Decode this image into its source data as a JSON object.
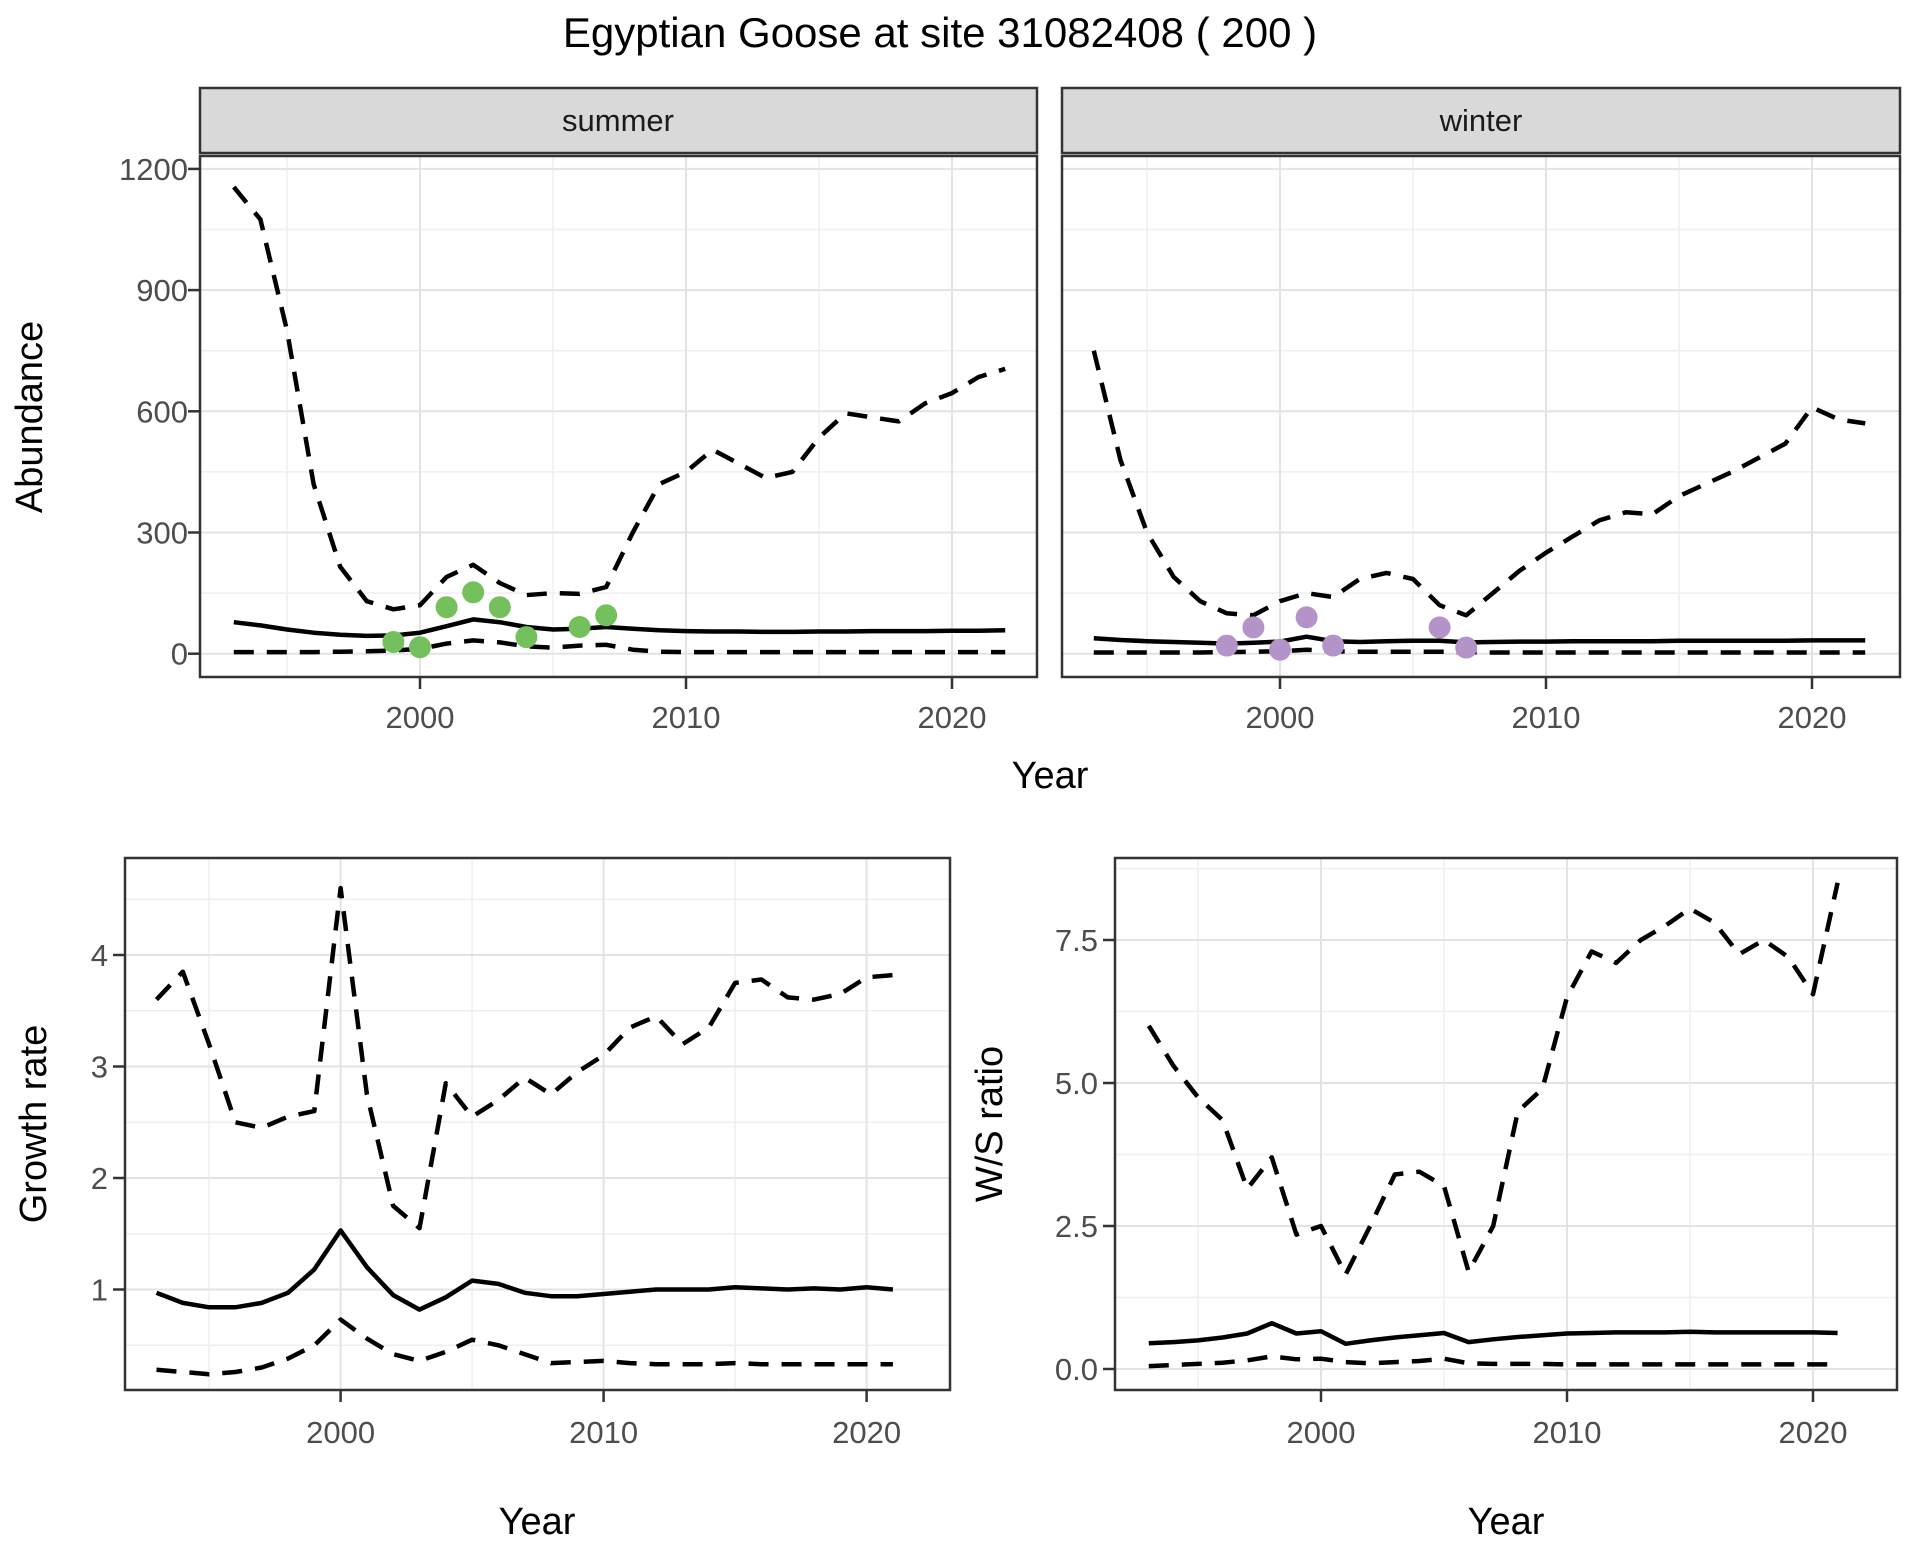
{
  "title": "Egyptian Goose at site 31082408 ( 200 )",
  "facets": {
    "summer": "summer",
    "winter": "winter"
  },
  "axes": {
    "abundance_label": "Abundance",
    "growth_label": "Growth rate",
    "ws_label": "W/S ratio",
    "year_label": "Year"
  },
  "colors": {
    "summer_points": "#74C05C",
    "winter_points": "#B494C8",
    "line": "#000000",
    "strip_fill": "#D9D9D9",
    "panel_border": "#333333",
    "grid_major": "#E3E3E3",
    "grid_minor": "#EFEFEF",
    "tick_text": "#4D4D4D"
  },
  "chart_data": [
    {
      "type": "line",
      "facet": "summer",
      "title": "Abundance (summer facet)",
      "xlabel": "Year",
      "ylabel": "Abundance",
      "x": [
        1993,
        1994,
        1995,
        1996,
        1997,
        1998,
        1999,
        2000,
        2001,
        2002,
        2003,
        2004,
        2005,
        2006,
        2007,
        2008,
        2009,
        2010,
        2011,
        2012,
        2013,
        2014,
        2015,
        2016,
        2017,
        2018,
        2019,
        2020,
        2021,
        2022
      ],
      "x_ticks": [
        2000,
        2010,
        2020
      ],
      "y_ticks": [
        0,
        300,
        600,
        900,
        1200
      ],
      "ylim": [
        -60,
        1235
      ],
      "xlim": [
        1991.6,
        2023.2
      ],
      "grid": true,
      "legend": "none",
      "series": [
        {
          "name": "upper_ci",
          "style": "dashed",
          "values": [
            1155,
            1075,
            800,
            420,
            215,
            130,
            110,
            120,
            190,
            220,
            175,
            145,
            150,
            148,
            165,
            300,
            420,
            450,
            505,
            470,
            435,
            450,
            535,
            595,
            585,
            575,
            620,
            645,
            685,
            705
          ]
        },
        {
          "name": "estimate",
          "style": "solid",
          "values": [
            78,
            70,
            60,
            52,
            47,
            44,
            45,
            52,
            68,
            85,
            78,
            66,
            60,
            62,
            66,
            62,
            58,
            56,
            55,
            55,
            54,
            54,
            55,
            55,
            56,
            56,
            56,
            57,
            57,
            58
          ]
        },
        {
          "name": "lower_ci",
          "style": "dashed",
          "values": [
            4,
            4,
            4,
            4,
            5,
            6,
            8,
            12,
            25,
            33,
            28,
            18,
            15,
            20,
            22,
            10,
            5,
            4,
            4,
            4,
            4,
            4,
            4,
            4,
            4,
            4,
            4,
            4,
            4,
            4
          ]
        }
      ],
      "points": {
        "name": "observed counts",
        "color": "#74C05C",
        "data": [
          [
            1999,
            29
          ],
          [
            2000,
            16
          ],
          [
            2001,
            115
          ],
          [
            2002,
            152
          ],
          [
            2003,
            115
          ],
          [
            2004,
            41
          ],
          [
            2006,
            66
          ],
          [
            2007,
            95
          ]
        ]
      }
    },
    {
      "type": "line",
      "facet": "winter",
      "title": "Abundance (winter facet)",
      "xlabel": "Year",
      "ylabel": "Abundance",
      "x": [
        1993,
        1994,
        1995,
        1996,
        1997,
        1998,
        1999,
        2000,
        2001,
        2002,
        2003,
        2004,
        2005,
        2006,
        2007,
        2008,
        2009,
        2010,
        2011,
        2012,
        2013,
        2014,
        2015,
        2016,
        2017,
        2018,
        2019,
        2020,
        2021,
        2022
      ],
      "x_ticks": [
        2000,
        2010,
        2020
      ],
      "y_ticks": [
        0,
        300,
        600,
        900,
        1200
      ],
      "ylim": [
        -60,
        1235
      ],
      "xlim": [
        1991.6,
        2023.2
      ],
      "grid": true,
      "legend": "none",
      "series": [
        {
          "name": "upper_ci",
          "style": "dashed",
          "values": [
            750,
            480,
            300,
            190,
            130,
            100,
            95,
            130,
            150,
            140,
            185,
            200,
            185,
            120,
            95,
            150,
            205,
            250,
            290,
            330,
            350,
            345,
            390,
            420,
            450,
            485,
            520,
            610,
            580,
            570
          ]
        },
        {
          "name": "estimate",
          "style": "solid",
          "values": [
            38,
            34,
            31,
            29,
            27,
            25,
            27,
            30,
            42,
            31,
            29,
            31,
            32,
            32,
            28,
            29,
            30,
            30,
            31,
            31,
            31,
            31,
            32,
            32,
            32,
            32,
            32,
            33,
            33,
            33
          ]
        },
        {
          "name": "lower_ci",
          "style": "dashed",
          "values": [
            3,
            3,
            3,
            3,
            3,
            4,
            5,
            6,
            10,
            6,
            5,
            5,
            5,
            5,
            4,
            3,
            3,
            3,
            3,
            3,
            3,
            3,
            3,
            3,
            3,
            3,
            3,
            3,
            3,
            3
          ]
        }
      ],
      "points": {
        "name": "observed counts",
        "color": "#B494C8",
        "data": [
          [
            1998,
            20
          ],
          [
            1999,
            65
          ],
          [
            2000,
            10
          ],
          [
            2001,
            90
          ],
          [
            2002,
            20
          ],
          [
            2006,
            65
          ],
          [
            2007,
            15
          ]
        ]
      }
    },
    {
      "type": "line",
      "facet": null,
      "title": "Growth rate",
      "xlabel": "Year",
      "ylabel": "Growth rate",
      "x": [
        1993,
        1994,
        1995,
        1996,
        1997,
        1998,
        1999,
        2000,
        2001,
        2002,
        2003,
        2004,
        2005,
        2006,
        2007,
        2008,
        2009,
        2010,
        2011,
        2012,
        2013,
        2014,
        2015,
        2016,
        2017,
        2018,
        2019,
        2020,
        2021
      ],
      "x_ticks": [
        2000,
        2010,
        2020
      ],
      "y_ticks": [
        1,
        2,
        3,
        4
      ],
      "ylim": [
        0.1,
        4.87
      ],
      "xlim": [
        1991.6,
        2023.2
      ],
      "grid": true,
      "legend": "none",
      "series": [
        {
          "name": "upper_ci",
          "style": "dashed",
          "values": [
            3.6,
            3.85,
            3.2,
            2.5,
            2.45,
            2.55,
            2.6,
            4.6,
            2.75,
            1.75,
            1.55,
            2.85,
            2.55,
            2.7,
            2.9,
            2.75,
            2.95,
            3.1,
            3.35,
            3.45,
            3.2,
            3.35,
            3.75,
            3.78,
            3.62,
            3.6,
            3.65,
            3.8,
            3.82
          ]
        },
        {
          "name": "estimate",
          "style": "solid",
          "values": [
            0.97,
            0.88,
            0.84,
            0.84,
            0.88,
            0.97,
            1.18,
            1.53,
            1.2,
            0.95,
            0.82,
            0.93,
            1.08,
            1.05,
            0.97,
            0.94,
            0.94,
            0.96,
            0.98,
            1.0,
            1.0,
            1.0,
            1.02,
            1.01,
            1.0,
            1.01,
            1.0,
            1.02,
            1.0
          ]
        },
        {
          "name": "lower_ci",
          "style": "dashed",
          "values": [
            0.28,
            0.26,
            0.24,
            0.26,
            0.3,
            0.38,
            0.5,
            0.73,
            0.56,
            0.42,
            0.36,
            0.44,
            0.55,
            0.5,
            0.42,
            0.34,
            0.35,
            0.36,
            0.34,
            0.33,
            0.33,
            0.33,
            0.34,
            0.33,
            0.33,
            0.33,
            0.33,
            0.33,
            0.33
          ]
        }
      ],
      "points": null
    },
    {
      "type": "line",
      "facet": null,
      "title": "W/S ratio",
      "xlabel": "Year",
      "ylabel": "W/S ratio",
      "x": [
        1993,
        1994,
        1995,
        1996,
        1997,
        1998,
        1999,
        2000,
        2001,
        2002,
        2003,
        2004,
        2005,
        2006,
        2007,
        2008,
        2009,
        2010,
        2011,
        2012,
        2013,
        2014,
        2015,
        2016,
        2017,
        2018,
        2019,
        2020,
        2021
      ],
      "x_ticks": [
        2000,
        2010,
        2020
      ],
      "y_ticks": [
        0.0,
        2.5,
        5.0,
        7.5
      ],
      "y_tick_labels": [
        "0.0",
        "2.5",
        "5.0",
        "7.5"
      ],
      "ylim": [
        -0.37,
        8.93
      ],
      "xlim": [
        1991.6,
        2023.2
      ],
      "grid": true,
      "legend": "none",
      "series": [
        {
          "name": "upper_ci",
          "style": "dashed",
          "values": [
            6.0,
            5.3,
            4.75,
            4.35,
            3.15,
            3.7,
            2.35,
            2.5,
            1.65,
            2.5,
            3.4,
            3.45,
            3.2,
            1.7,
            2.5,
            4.5,
            4.9,
            6.5,
            7.3,
            7.1,
            7.5,
            7.75,
            8.05,
            7.8,
            7.25,
            7.5,
            7.2,
            6.55,
            8.5
          ]
        },
        {
          "name": "estimate",
          "style": "solid",
          "values": [
            0.45,
            0.47,
            0.5,
            0.55,
            0.62,
            0.8,
            0.62,
            0.66,
            0.44,
            0.5,
            0.55,
            0.59,
            0.63,
            0.47,
            0.52,
            0.56,
            0.59,
            0.62,
            0.63,
            0.64,
            0.64,
            0.64,
            0.65,
            0.64,
            0.64,
            0.64,
            0.64,
            0.64,
            0.63
          ]
        },
        {
          "name": "lower_ci",
          "style": "dashed",
          "values": [
            0.05,
            0.07,
            0.09,
            0.11,
            0.15,
            0.22,
            0.17,
            0.18,
            0.12,
            0.1,
            0.12,
            0.14,
            0.18,
            0.1,
            0.09,
            0.09,
            0.09,
            0.08,
            0.08,
            0.08,
            0.08,
            0.08,
            0.08,
            0.08,
            0.08,
            0.08,
            0.08,
            0.08,
            0.08
          ]
        }
      ],
      "points": null
    }
  ]
}
